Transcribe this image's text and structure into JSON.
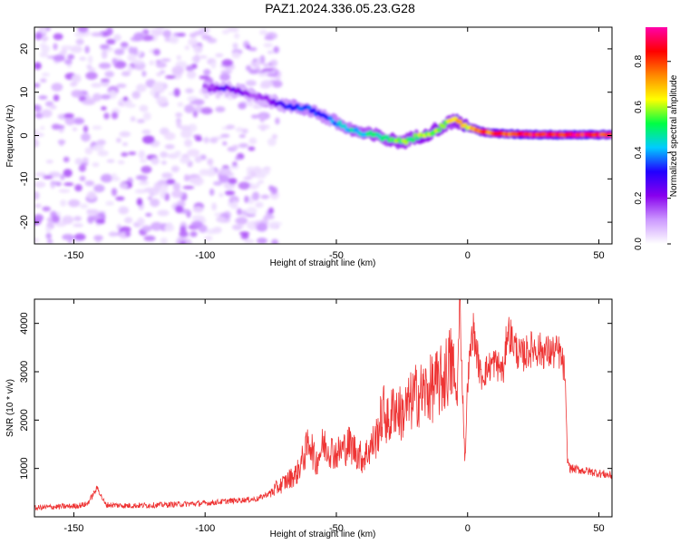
{
  "figure": {
    "title": "PAZ1.2024.336.05.23.G28"
  },
  "chart_data": [
    {
      "type": "heatmap",
      "title": "",
      "xlabel": "Height of straight line (km)",
      "ylabel": "Frequency (Hz)",
      "xlim": [
        -165,
        55
      ],
      "ylim": [
        -25,
        25
      ],
      "x_ticks": [
        -150,
        -100,
        -50,
        0,
        50
      ],
      "y_ticks": [
        -20,
        -10,
        0,
        10,
        20
      ],
      "grid": false,
      "noise_region": {
        "x_range": [
          -165,
          -72
        ],
        "y_range": [
          -25,
          25
        ]
      },
      "ridge": {
        "x": [
          -100,
          -93,
          -85,
          -80,
          -75,
          -70,
          -65,
          -60,
          -55,
          -50,
          -45,
          -40,
          -35,
          -30,
          -25,
          -20,
          -15,
          -10,
          -5,
          0,
          5,
          10,
          20,
          30,
          40,
          55
        ],
        "frequency": [
          11,
          11,
          10,
          9,
          8,
          7,
          6.5,
          6,
          4.5,
          3,
          1.5,
          0.5,
          0,
          -1,
          -1.5,
          -0.5,
          0.5,
          2,
          3.5,
          2,
          1,
          0.5,
          0.3,
          0.2,
          0.2,
          0.2
        ],
        "amplitude": [
          0.15,
          0.25,
          0.2,
          0.15,
          0.2,
          0.3,
          0.35,
          0.35,
          0.35,
          0.4,
          0.45,
          0.45,
          0.5,
          0.55,
          0.55,
          0.55,
          0.6,
          0.6,
          0.65,
          0.7,
          0.75,
          0.8,
          0.85,
          0.9,
          0.9,
          0.85
        ]
      },
      "colorbar": {
        "label": "Normalized spectral amplitude",
        "range": [
          0.0,
          0.95
        ],
        "ticks": [
          0.0,
          0.2,
          0.4,
          0.6,
          0.8
        ],
        "tick_labels": [
          "0.0",
          "0.2",
          "0.4",
          "0.6",
          "0.8"
        ],
        "colors": [
          "#ffffff",
          "#cc99ff",
          "#8800ee",
          "#2200ff",
          "#00ccff",
          "#00ff44",
          "#ffff00",
          "#ff8800",
          "#ff0000",
          "#ff00aa"
        ]
      }
    },
    {
      "type": "line",
      "title": "",
      "xlabel": "Height of straight line (km)",
      "ylabel": "SNR (10 * v/v)",
      "xlim": [
        -165,
        55
      ],
      "ylim": [
        0,
        4500
      ],
      "x_ticks": [
        -150,
        -100,
        -50,
        0,
        50
      ],
      "y_ticks": [
        1000,
        2000,
        3000,
        4000
      ],
      "grid": false,
      "color": "#ee3333",
      "series": [
        {
          "x": [
            -165,
            -160,
            -150,
            -145,
            -141,
            -138,
            -130,
            -120,
            -110,
            -100,
            -90,
            -80,
            -75,
            -70,
            -65,
            -62,
            -60,
            -58,
            -55,
            -50,
            -45,
            -40,
            -35,
            -32,
            -30,
            -28,
            -25,
            -20,
            -15,
            -10,
            -6,
            -4,
            -3,
            -1,
            0,
            2,
            5,
            10,
            14,
            15,
            20,
            25,
            30,
            35,
            37,
            38,
            39,
            45,
            50,
            55
          ],
          "y": [
            180,
            200,
            220,
            260,
            600,
            250,
            230,
            240,
            260,
            280,
            330,
            370,
            500,
            700,
            900,
            1300,
            1600,
            1100,
            1500,
            1300,
            1500,
            1200,
            1600,
            2200,
            1900,
            2300,
            2100,
            2500,
            2600,
            2800,
            3200,
            2400,
            4450,
            1100,
            2800,
            3900,
            2900,
            3200,
            3000,
            3900,
            3300,
            3500,
            3400,
            3400,
            3000,
            1200,
            1000,
            950,
            900,
            850
          ]
        }
      ]
    }
  ]
}
